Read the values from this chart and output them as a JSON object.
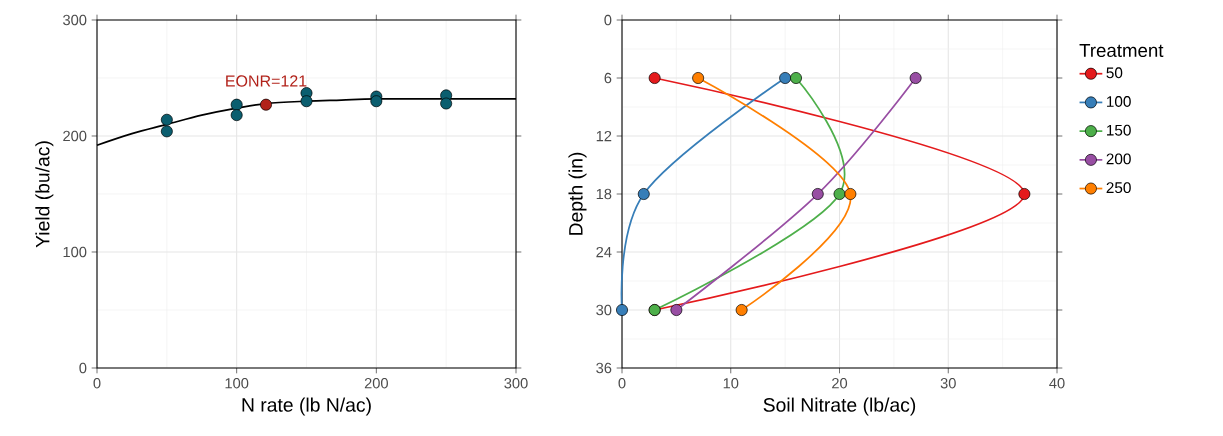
{
  "chart_data": [
    {
      "type": "scatter",
      "xlabel": "N rate (lb N/ac)",
      "ylabel": "Yield (bu/ac)",
      "xlim": [
        0,
        300
      ],
      "ylim": [
        0,
        300
      ],
      "xticks": [
        0,
        100,
        200,
        300
      ],
      "yticks": [
        0,
        100,
        200,
        300
      ],
      "grid": true,
      "marker": "circle",
      "annotations": [
        {
          "text": "EONR=121",
          "x": 121,
          "y": 227
        }
      ],
      "series": [
        {
          "type": "line",
          "color": "#000000",
          "marker": "none",
          "x": [
            0,
            25,
            50,
            75,
            100,
            121,
            150,
            175,
            200,
            250,
            300
          ],
          "values": [
            192,
            202,
            210,
            218,
            224,
            228,
            230,
            231,
            232,
            232,
            232
          ]
        },
        {
          "color": "#0b5e6f",
          "x": [
            50,
            50,
            100,
            100,
            150,
            150,
            200,
            200,
            250,
            250
          ],
          "values": [
            214,
            204,
            227,
            218,
            237,
            230,
            234,
            230,
            235,
            228
          ]
        },
        {
          "color": "#b2221a",
          "x": [
            121
          ],
          "values": [
            227
          ]
        }
      ]
    },
    {
      "type": "line",
      "xlabel": "Soil Nitrate (lb/ac)",
      "ylabel": "Depth (in)",
      "legend_title": "Treatment",
      "legend": "right",
      "xlim": [
        0,
        40
      ],
      "ylim": [
        36,
        0
      ],
      "xticks": [
        0,
        10,
        20,
        30,
        40
      ],
      "yticks": [
        0,
        6,
        12,
        18,
        24,
        30,
        36
      ],
      "grid": true,
      "marker": "circle",
      "series": [
        {
          "name": "50",
          "color": "#e41a1c",
          "x": [
            3,
            37,
            3
          ],
          "values": [
            6,
            18,
            30
          ]
        },
        {
          "name": "100",
          "color": "#377eb8",
          "x": [
            15,
            2,
            0
          ],
          "values": [
            6,
            18,
            30
          ]
        },
        {
          "name": "150",
          "color": "#4daf4a",
          "x": [
            16,
            20,
            3
          ],
          "values": [
            6,
            18,
            30
          ]
        },
        {
          "name": "200",
          "color": "#984ea3",
          "x": [
            27,
            18,
            5
          ],
          "values": [
            6,
            18,
            30
          ]
        },
        {
          "name": "250",
          "color": "#ff7f00",
          "x": [
            7,
            21,
            11
          ],
          "values": [
            6,
            18,
            30
          ]
        }
      ]
    }
  ]
}
